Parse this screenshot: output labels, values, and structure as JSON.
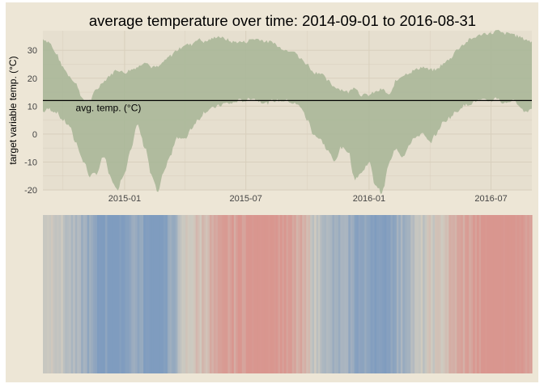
{
  "chart_data": [
    {
      "type": "area",
      "title": "average temperature over time: 2014-09-01 to 2016-08-31",
      "ylabel": "target variable temp. (°C)",
      "xlabel": "",
      "ylim": [
        -20,
        37
      ],
      "yticks": [
        -20,
        -10,
        0,
        10,
        20,
        30
      ],
      "xlim": [
        "2014-09-01",
        "2016-08-31"
      ],
      "xticks": [
        "2015-01",
        "2015-07",
        "2016-01",
        "2016-07"
      ],
      "grid": true,
      "colors": {
        "band": "#a6b595",
        "line": "#000000",
        "panel": "#e6dfcf",
        "grid": "#d8cfbd"
      },
      "hline": {
        "value": 12,
        "label": "avg. temp. (°C)"
      },
      "series": [
        {
          "x": [
            "2014-09-01",
            "2014-09-10",
            "2014-09-20",
            "2014-10-01",
            "2014-10-10",
            "2014-10-20",
            "2014-11-01",
            "2014-11-10",
            "2014-11-20",
            "2014-12-01",
            "2014-12-10",
            "2014-12-20",
            "2015-01-01",
            "2015-01-10",
            "2015-01-20",
            "2015-02-01",
            "2015-02-10",
            "2015-02-20",
            "2015-03-01",
            "2015-03-10",
            "2015-03-20",
            "2015-04-01",
            "2015-04-10",
            "2015-04-20",
            "2015-05-01",
            "2015-05-10",
            "2015-05-20",
            "2015-06-01",
            "2015-06-10",
            "2015-06-20",
            "2015-07-01",
            "2015-07-10",
            "2015-07-20",
            "2015-08-01",
            "2015-08-10",
            "2015-08-20",
            "2015-09-01",
            "2015-09-10",
            "2015-09-20",
            "2015-10-01",
            "2015-10-10",
            "2015-10-20",
            "2015-11-01",
            "2015-11-10",
            "2015-11-20",
            "2015-12-01",
            "2015-12-10",
            "2015-12-20",
            "2016-01-01",
            "2016-01-10",
            "2016-01-20",
            "2016-02-01",
            "2016-02-10",
            "2016-02-20",
            "2016-03-01",
            "2016-03-10",
            "2016-03-20",
            "2016-04-01",
            "2016-04-10",
            "2016-04-20",
            "2016-05-01",
            "2016-05-10",
            "2016-05-20",
            "2016-06-01",
            "2016-06-10",
            "2016-06-20",
            "2016-07-01",
            "2016-07-10",
            "2016-07-20",
            "2016-08-01",
            "2016-08-10",
            "2016-08-20",
            "2016-08-31"
          ],
          "low": [
            8,
            9,
            8,
            5,
            3,
            -3,
            -10,
            -15,
            -14,
            -8,
            -15,
            -20,
            -14,
            -5,
            3,
            -5,
            -15,
            -21,
            -13,
            -8,
            -1,
            -2,
            2,
            5,
            8,
            9,
            10,
            11,
            11,
            12,
            12,
            13,
            12,
            11,
            12,
            12,
            12,
            11,
            10,
            5,
            0,
            -2,
            -6,
            -10,
            -5,
            -6,
            -16,
            -14,
            -10,
            -18,
            -21,
            -10,
            -5,
            -8,
            -4,
            -1,
            0,
            -3,
            0,
            4,
            6,
            8,
            10,
            11,
            12,
            12,
            12,
            13,
            11,
            12,
            11,
            8,
            9
          ],
          "high": [
            34,
            33,
            29,
            24,
            21,
            18,
            12,
            12,
            16,
            19,
            21,
            23,
            22,
            23,
            24,
            26,
            24,
            24,
            26,
            28,
            30,
            32,
            32,
            34,
            33,
            34,
            35,
            34,
            33,
            33,
            33,
            34,
            34,
            33,
            33,
            31,
            30,
            30,
            27,
            25,
            22,
            22,
            19,
            17,
            16,
            15,
            17,
            14,
            14,
            15,
            16,
            14,
            19,
            21,
            22,
            23,
            24,
            23,
            23,
            25,
            27,
            30,
            32,
            34,
            35,
            36,
            36,
            37,
            36,
            36,
            35,
            34,
            33
          ],
          "stripe_values": [
            12,
            12,
            12,
            9,
            7,
            5,
            4,
            2,
            -2,
            -1,
            -3,
            -4,
            -1,
            3,
            2,
            -2,
            -6,
            -5,
            -2,
            2,
            6,
            12,
            13,
            14,
            16,
            17,
            18,
            20,
            20,
            21,
            22,
            23,
            24,
            24,
            24,
            22,
            20,
            18,
            17,
            14,
            10,
            9,
            5,
            3,
            4,
            3,
            1,
            0,
            1,
            -1,
            -3,
            1,
            3,
            4,
            7,
            9,
            10,
            12,
            12,
            14,
            16,
            18,
            19,
            20,
            21,
            22,
            23,
            24,
            24,
            24,
            23,
            22,
            21
          ]
        }
      ]
    },
    {
      "type": "heatmap",
      "title": "",
      "x": [
        "2014-09-01",
        "2016-08-31"
      ],
      "colors": {
        "cold": "#7f9cbf",
        "warm": "#d9968f",
        "neutral": "#cfcbc0"
      }
    }
  ]
}
